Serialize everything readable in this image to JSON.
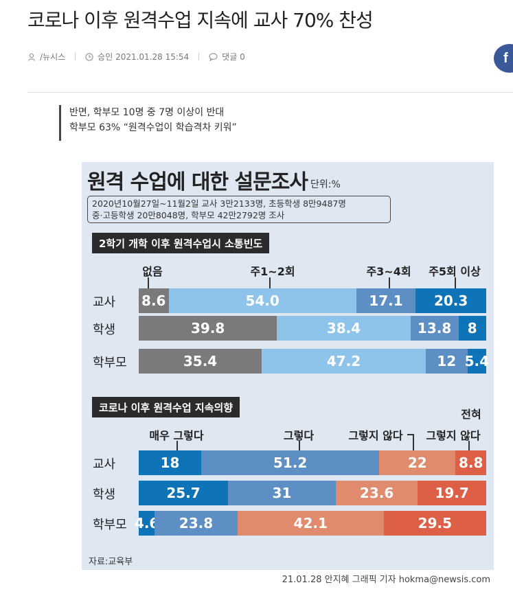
{
  "article": {
    "headline": "코로나 이후 원격수업 지속에 교사 70% 찬성",
    "author": "/뉴시스",
    "approved": "승인 2021.01.28 15:54",
    "comments": "댓글 0",
    "share_facebook": "f",
    "subheads": [
      "반면, 학부모 10명 중 7명 이상이 반대",
      "학부모 63% “원격수업이 학습격차 키워”"
    ]
  },
  "graphic": {
    "title": "원격 수업에 대한 설문조사",
    "unit": "단위:%",
    "survey_lines": [
      "2020년10월27일~11월2일 교사 3만2133명, 초등학생 8만9487명",
      "중·고등학생 20만8048명, 학부모 42만2792명 조사"
    ],
    "source": "자료:교육부",
    "credit": "21.01.28 안지혜 그래픽 기자 hokma@newsis.com"
  },
  "colors": {
    "panel": "#dfe7f2",
    "s1": [
      "#7a7a7a",
      "#8ec3ea",
      "#5d8fc4",
      "#0f73b8"
    ],
    "s2": [
      "#0f73b8",
      "#5d8fc4",
      "#e08a6e",
      "#dd5f46"
    ]
  },
  "chart_data": [
    {
      "type": "bar",
      "orientation": "horizontal",
      "stacked": true,
      "title": "2학기 개학 이후 원격수업시 소통빈도",
      "categories": [
        "교사",
        "학생",
        "학부모"
      ],
      "series": [
        {
          "name": "없음",
          "values": [
            8.6,
            39.8,
            35.4
          ]
        },
        {
          "name": "주1~2회",
          "values": [
            54.0,
            38.4,
            47.2
          ]
        },
        {
          "name": "주3~4회",
          "values": [
            17.1,
            13.8,
            12
          ]
        },
        {
          "name": "주5회 이상",
          "values": [
            20.3,
            8,
            5.4
          ]
        }
      ],
      "value_labels": [
        [
          "8.6",
          "54.0",
          "17.1",
          "20.3"
        ],
        [
          "39.8",
          "38.4",
          "13.8",
          "8"
        ],
        [
          "35.4",
          "47.2",
          "12",
          "5.4"
        ]
      ],
      "unit": "%"
    },
    {
      "type": "bar",
      "orientation": "horizontal",
      "stacked": true,
      "title": "코로나 이후 원격수업 지속의향",
      "categories": [
        "교사",
        "학생",
        "학부모"
      ],
      "series": [
        {
          "name": "매우 그렇다",
          "values": [
            18,
            25.7,
            4.6
          ]
        },
        {
          "name": "그렇다",
          "values": [
            51.2,
            31,
            23.8
          ]
        },
        {
          "name": "그렇지 않다",
          "values": [
            22,
            23.6,
            42.1
          ]
        },
        {
          "name": "전혀 그렇지 않다",
          "values": [
            8.8,
            19.7,
            29.5
          ]
        }
      ],
      "legend_display": [
        "매우 그렇다",
        "그렇다",
        "그렇지 않다",
        "전혀",
        "그렇지 않다"
      ],
      "value_labels": [
        [
          "18",
          "51.2",
          "22",
          "8.8"
        ],
        [
          "25.7",
          "31",
          "23.6",
          "19.7"
        ],
        [
          "4.6",
          "23.8",
          "42.1",
          "29.5"
        ]
      ],
      "unit": "%"
    }
  ]
}
